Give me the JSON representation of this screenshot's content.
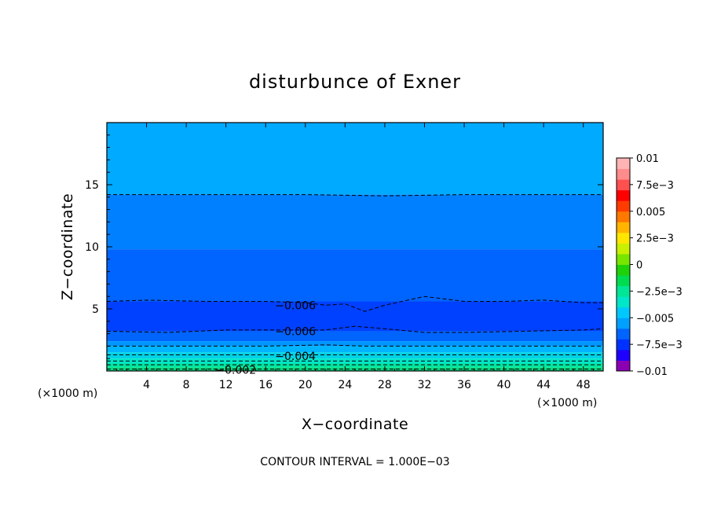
{
  "chart_data": {
    "type": "heatmap",
    "title": "disturbunce of Exner",
    "xlabel": "X−coordinate",
    "ylabel": "Z−coordinate",
    "x_unit": "(×1000 m)",
    "y_unit": "(×1000 m)",
    "xlim": [
      0,
      50
    ],
    "ylim": [
      0,
      20
    ],
    "x_ticks": [
      4,
      8,
      12,
      16,
      20,
      24,
      28,
      32,
      36,
      40,
      44,
      48
    ],
    "y_ticks": [
      5,
      10,
      15
    ],
    "colorbar": {
      "range": [
        -0.01,
        0.01
      ],
      "tick_values": [
        0.01,
        0.0075,
        0.005,
        0.0025,
        0,
        -0.0025,
        -0.005,
        -0.0075,
        -0.01
      ],
      "tick_labels": [
        "0.01",
        "7.5e−3",
        "0.005",
        "2.5e−3",
        "0",
        "−2.5e−3",
        "−0.005",
        "−7.5e−3",
        "−0.01"
      ],
      "colors": [
        "#8c00b4",
        "#1e00ff",
        "#0032ff",
        "#0064ff",
        "#00a0ff",
        "#00c8ff",
        "#00e6c8",
        "#00e696",
        "#00dc50",
        "#1ed20a",
        "#78e600",
        "#c8f000",
        "#ffe600",
        "#ffb400",
        "#ff7800",
        "#ff3c00",
        "#ff0000",
        "#ff5050",
        "#ff8c8c",
        "#ffb4b4"
      ]
    },
    "bands": [
      {
        "z_top": 20,
        "color": "#00aaff"
      },
      {
        "z_top": 14.2,
        "color": "#0080ff"
      },
      {
        "z_top": 9.8,
        "color": "#0064ff"
      },
      {
        "z_top": 5.6,
        "color": "#0040ff"
      },
      {
        "z_top": 3.2,
        "color": "#0064ff"
      },
      {
        "z_top": 2.4,
        "color": "#0096ff"
      },
      {
        "z_top": 2.0,
        "color": "#00b4ff"
      },
      {
        "z_top": 1.5,
        "color": "#00d2e6"
      },
      {
        "z_top": 1.0,
        "color": "#00e6c8"
      },
      {
        "z_top": 0.6,
        "color": "#00e6a0"
      },
      {
        "z_top": 0.3,
        "color": "#00dc82"
      }
    ],
    "contours": [
      {
        "x": [
          0,
          10,
          20,
          28,
          36,
          44,
          50
        ],
        "z": [
          14.2,
          14.2,
          14.2,
          14.1,
          14.2,
          14.2,
          14.2
        ]
      },
      {
        "x": [
          0,
          4,
          10,
          16,
          20,
          22,
          24,
          26,
          28,
          32,
          36,
          40,
          44,
          48,
          50
        ],
        "z": [
          5.6,
          5.7,
          5.6,
          5.6,
          5.5,
          5.3,
          5.4,
          4.8,
          5.3,
          6.0,
          5.6,
          5.6,
          5.7,
          5.5,
          5.5
        ]
      },
      {
        "x": [
          0,
          6,
          12,
          18,
          22,
          25,
          28,
          32,
          36,
          42,
          48,
          50
        ],
        "z": [
          3.2,
          3.1,
          3.3,
          3.3,
          3.3,
          3.6,
          3.4,
          3.1,
          3.1,
          3.2,
          3.3,
          3.4
        ]
      },
      {
        "x": [
          0,
          8,
          16,
          22,
          26,
          32,
          40,
          50
        ],
        "z": [
          2.0,
          2.0,
          2.0,
          2.1,
          2.0,
          2.0,
          2.0,
          2.0
        ]
      },
      {
        "x": [
          0,
          10,
          20,
          30,
          40,
          50
        ],
        "z": [
          1.3,
          1.3,
          1.3,
          1.3,
          1.3,
          1.3
        ]
      },
      {
        "x": [
          0,
          10,
          20,
          30,
          40,
          50
        ],
        "z": [
          0.8,
          0.8,
          0.8,
          0.8,
          0.8,
          0.8
        ]
      },
      {
        "x": [
          0,
          10,
          20,
          30,
          40,
          50
        ],
        "z": [
          0.5,
          0.5,
          0.5,
          0.5,
          0.5,
          0.5
        ]
      },
      {
        "x": [
          0,
          10,
          20,
          30,
          40,
          50
        ],
        "z": [
          0.15,
          0.15,
          0.15,
          0.15,
          0.15,
          0.15
        ]
      }
    ],
    "contour_labels": [
      {
        "text": "−0.006",
        "x": 19,
        "z": 5.3
      },
      {
        "text": "−0.006",
        "x": 19,
        "z": 3.2
      },
      {
        "text": "−0.004",
        "x": 19,
        "z": 1.2
      },
      {
        "text": "−0.002",
        "x": 13,
        "z": 0.1
      }
    ],
    "footer": "CONTOUR INTERVAL = 1.000E−03"
  }
}
